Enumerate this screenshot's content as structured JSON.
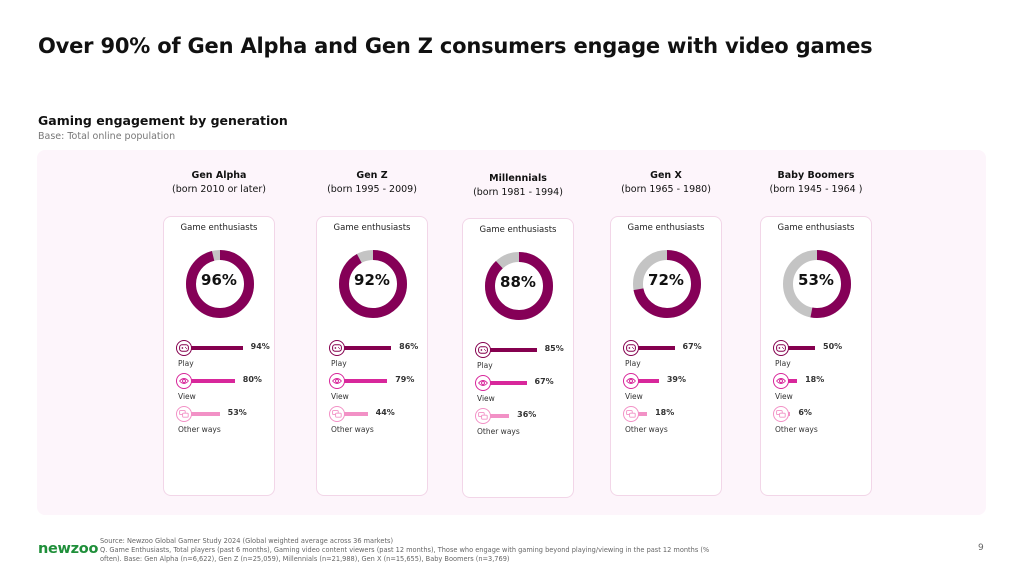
{
  "title": "Over 90% of Gen Alpha and Gen Z consumers engage with video games",
  "subtitle": "Gaming engagement by generation",
  "base": "Base: Total online population",
  "colors": {
    "enthusiast": "#850057",
    "remainder": "#c4c4c4",
    "play": "#85004f",
    "view": "#d8279b",
    "other": "#f291c6"
  },
  "card_label": "Game enthusiasts",
  "metric_labels": {
    "play": "Play",
    "view": "View",
    "other": "Other ways"
  },
  "icons": {
    "play": "gamepad-icon",
    "view": "eye-icon",
    "other": "chat-bubbles-icon"
  },
  "chart_data": {
    "type": "donut-and-bar",
    "title": "Gaming engagement by generation",
    "subtitle": "Base: Total online population",
    "categories": [
      "Gen Alpha",
      "Gen Z",
      "Millennials",
      "Gen X",
      "Baby Boomers"
    ],
    "generations": [
      {
        "name": "Gen Alpha",
        "born": "(born 2010 or later)",
        "enthusiasts": 96,
        "enthusiasts_label": "96%",
        "play": 94,
        "play_label": "94%",
        "view": 80,
        "view_label": "80%",
        "other": 53,
        "other_label": "53%"
      },
      {
        "name": "Gen Z",
        "born": "(born 1995 - 2009)",
        "enthusiasts": 92,
        "enthusiasts_label": "92%",
        "play": 86,
        "play_label": "86%",
        "view": 79,
        "view_label": "79%",
        "other": 44,
        "other_label": "44%"
      },
      {
        "name": "Millennials",
        "born": "(born 1981 - 1994)",
        "enthusiasts": 88,
        "enthusiasts_label": "88%",
        "play": 85,
        "play_label": "85%",
        "view": 67,
        "view_label": "67%",
        "other": 36,
        "other_label": "36%"
      },
      {
        "name": "Gen X",
        "born": "(born 1965 - 1980)",
        "enthusiasts": 72,
        "enthusiasts_label": "72%",
        "play": 67,
        "play_label": "67%",
        "view": 39,
        "view_label": "39%",
        "other": 18,
        "other_label": "18%"
      },
      {
        "name": "Baby Boomers",
        "born": "(born 1945 - 1964 )",
        "enthusiasts": 53,
        "enthusiasts_label": "53%",
        "play": 50,
        "play_label": "50%",
        "view": 18,
        "view_label": "18%",
        "other": 6,
        "other_label": "6%"
      }
    ],
    "series": [
      {
        "name": "Game enthusiasts",
        "values": [
          96,
          92,
          88,
          72,
          53
        ]
      },
      {
        "name": "Play",
        "values": [
          94,
          86,
          85,
          67,
          50
        ]
      },
      {
        "name": "View",
        "values": [
          80,
          79,
          67,
          39,
          18
        ]
      },
      {
        "name": "Other ways",
        "values": [
          53,
          44,
          36,
          18,
          6
        ]
      }
    ],
    "unit": "%",
    "ylim": [
      0,
      100
    ]
  },
  "footer": {
    "logo": "newzoo",
    "source": "Source: Newzoo Global Gamer Study 2024 (Global weighted average across 36 markets)",
    "question": "Q. Game Enthusiasts, Total players (past 6 months), Gaming video content viewers (past 12 months), Those who engage with gaming beyond playing/viewing in the past 12 months (% often). Base: Gen Alpha (n=6,622), Gen Z (n=25,059), Millennials (n=21,988), Gen X (n=15,655), Baby Boomers (n=3,769)",
    "page": "9"
  }
}
